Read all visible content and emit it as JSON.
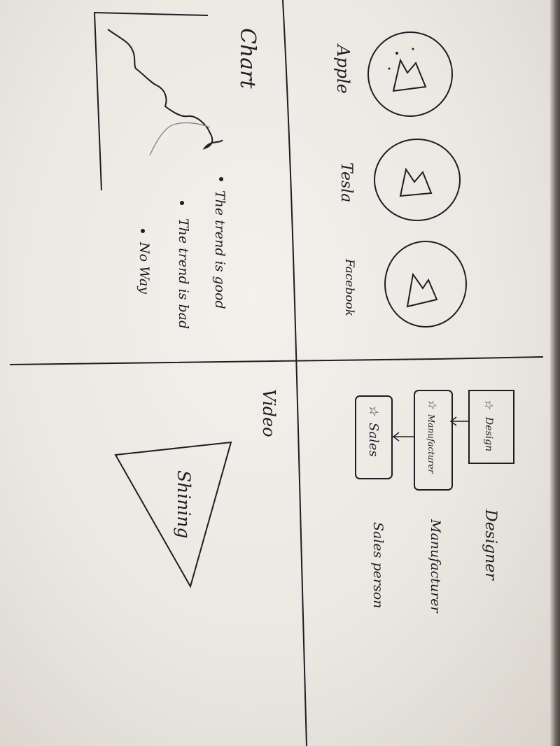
{
  "sections": {
    "chart": {
      "title": "Chart",
      "bullets": [
        "The trend is good",
        "The trend is bad",
        "No Way"
      ]
    },
    "companies": {
      "items": [
        {
          "name": "Apple",
          "icon": "mountain-image-icon"
        },
        {
          "name": "Tesla",
          "icon": "mountain-image-icon"
        },
        {
          "name": "Facebook",
          "icon": "mountain-image-icon"
        }
      ]
    },
    "video": {
      "title": "Video",
      "player_label": "Shining"
    },
    "roles": {
      "flow_steps": [
        "Design",
        "Manufacturer",
        "Sales"
      ],
      "step_icon": "star-icon",
      "labels": [
        "Designer",
        "Manufacturer",
        "Sales person"
      ]
    }
  },
  "colors": {
    "ink": "#1d1d22",
    "paper": "#efece6"
  }
}
